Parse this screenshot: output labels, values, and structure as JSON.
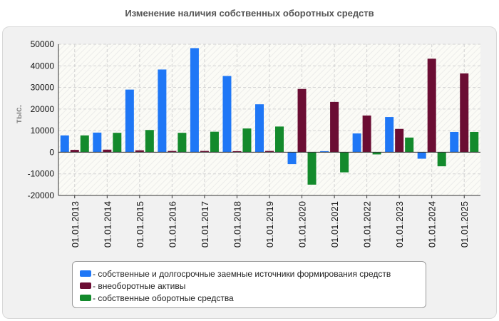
{
  "chart_data": {
    "type": "bar",
    "title": "Изменение наличия собственных оборотных средств",
    "ylabel": "тыс.",
    "xlabel": "",
    "ylim": [
      -20000,
      50000
    ],
    "yticks": [
      -20000,
      -10000,
      0,
      10000,
      20000,
      30000,
      40000,
      50000
    ],
    "grid": true,
    "legend_position": "bottom",
    "categories": [
      "01.01.2013",
      "01.01.2014",
      "01.01.2015",
      "01.01.2016",
      "01.01.2017",
      "01.01.2018",
      "01.01.2019",
      "01.01.2020",
      "01.01.2021",
      "01.01.2022",
      "01.01.2023",
      "01.01.2024",
      "01.01.2025"
    ],
    "series": [
      {
        "name": "собственные и долгосрочные заемные источники формирования средств",
        "color": "#1f77f6",
        "values": [
          7800,
          9100,
          29000,
          38300,
          48200,
          35300,
          22200,
          -5500,
          500,
          8700,
          16300,
          -3000,
          9400
        ]
      },
      {
        "name": "внеоборотные активы",
        "color": "#6b0d33",
        "values": [
          1100,
          1200,
          900,
          600,
          600,
          500,
          600,
          29300,
          23300,
          17000,
          10800,
          43300,
          36500
        ]
      },
      {
        "name": "собственные оборотные средства",
        "color": "#138a2c",
        "values": [
          7800,
          9000,
          10300,
          9000,
          9500,
          11000,
          11900,
          -15000,
          -9300,
          -1000,
          6800,
          -6500,
          9400
        ]
      }
    ]
  }
}
